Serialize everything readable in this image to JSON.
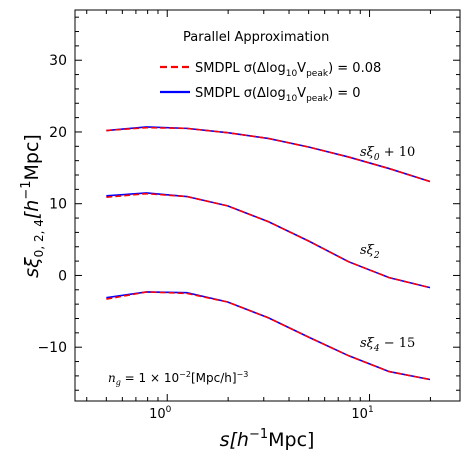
{
  "chart_data": {
    "type": "line",
    "xscale": "log",
    "xlim": [
      0.35,
      28
    ],
    "ylim": [
      -17.5,
      37
    ],
    "xlabel_main": "s[h",
    "xlabel_exp": "−1",
    "xlabel_tail": "Mpc]",
    "ylabel": "sξ",
    "ylabel_sub": "0, 2, 4",
    "ylabel_unit": "[h",
    "ylabel_exp": "−1",
    "ylabel_tail": "Mpc]",
    "xticks_major": [
      {
        "value": 1,
        "base": "10",
        "exp": "0"
      },
      {
        "value": 10,
        "base": "10",
        "exp": "1"
      }
    ],
    "xticks_minor": [
      0.4,
      0.5,
      0.6,
      0.7,
      0.8,
      0.9,
      2,
      3,
      4,
      5,
      6,
      7,
      8,
      9,
      20
    ],
    "yticks_major": [
      -10,
      0,
      10,
      20,
      30
    ],
    "yticks_labels": [
      "−10",
      "0",
      "10",
      "20",
      "30"
    ],
    "yticks_minor_step": 2,
    "legend_title": "Parallel Approximation",
    "legend_entries": [
      {
        "label": "SMDPL σ(Δlog",
        "sub": "10",
        "mid": "V",
        "sub2": "peak",
        "tail": ") = 0.08",
        "color": "#ff0000",
        "dash": "dashed"
      },
      {
        "label": "SMDPL σ(Δlog",
        "sub": "10",
        "mid": "V",
        "sub2": "peak",
        "tail": ") = 0",
        "color": "#0000ff",
        "dash": "solid"
      }
    ],
    "annotation": {
      "text_a": "n",
      "sub_a": "g",
      "text_b": " = 1 × 10",
      "exp_b": "−2",
      "text_c": "[Mpc/h]",
      "exp_c": "−3"
    },
    "series": [
      {
        "label_main": "sξ",
        "label_sub": "0",
        "label_tail": " + 10",
        "color": "#0000ff",
        "dash": "solid",
        "x": [
          0.5,
          0.79,
          1.25,
          1.99,
          3.16,
          5.0,
          7.9,
          12.5,
          19.9
        ],
        "y": [
          20.2,
          20.7,
          20.5,
          19.9,
          19.1,
          17.9,
          16.5,
          14.9,
          13.1
        ]
      },
      {
        "color": "#ff0000",
        "dash": "dashed",
        "x": [
          0.5,
          0.79,
          1.25,
          1.99,
          3.16,
          5.0,
          7.9,
          12.5,
          19.9
        ],
        "y": [
          20.2,
          20.6,
          20.5,
          19.9,
          19.1,
          17.9,
          16.5,
          14.9,
          13.1
        ]
      },
      {
        "label_main": "sξ",
        "label_sub": "2",
        "label_tail": "",
        "color": "#0000ff",
        "dash": "solid",
        "x": [
          0.5,
          0.79,
          1.25,
          1.99,
          3.16,
          5.0,
          7.9,
          12.5,
          19.9
        ],
        "y": [
          11.1,
          11.5,
          11.0,
          9.7,
          7.5,
          4.8,
          1.9,
          -0.3,
          -1.7
        ]
      },
      {
        "color": "#ff0000",
        "dash": "dashed",
        "x": [
          0.5,
          0.79,
          1.25,
          1.99,
          3.16,
          5.0,
          7.9,
          12.5,
          19.9
        ],
        "y": [
          10.9,
          11.4,
          11.0,
          9.7,
          7.5,
          4.8,
          1.9,
          -0.3,
          -1.7
        ]
      },
      {
        "label_main": "sξ",
        "label_sub": "4",
        "label_tail": " − 15",
        "color": "#0000ff",
        "dash": "solid",
        "x": [
          0.5,
          0.79,
          1.25,
          1.99,
          3.16,
          5.0,
          7.9,
          12.5,
          19.9
        ],
        "y": [
          -3.1,
          -2.3,
          -2.4,
          -3.7,
          -5.9,
          -8.6,
          -11.2,
          -13.4,
          -14.5
        ]
      },
      {
        "color": "#ff0000",
        "dash": "dashed",
        "x": [
          0.5,
          0.79,
          1.25,
          1.99,
          3.16,
          5.0,
          7.9,
          12.5,
          19.9
        ],
        "y": [
          -3.3,
          -2.3,
          -2.5,
          -3.7,
          -5.9,
          -8.6,
          -11.2,
          -13.4,
          -14.5
        ]
      }
    ]
  }
}
